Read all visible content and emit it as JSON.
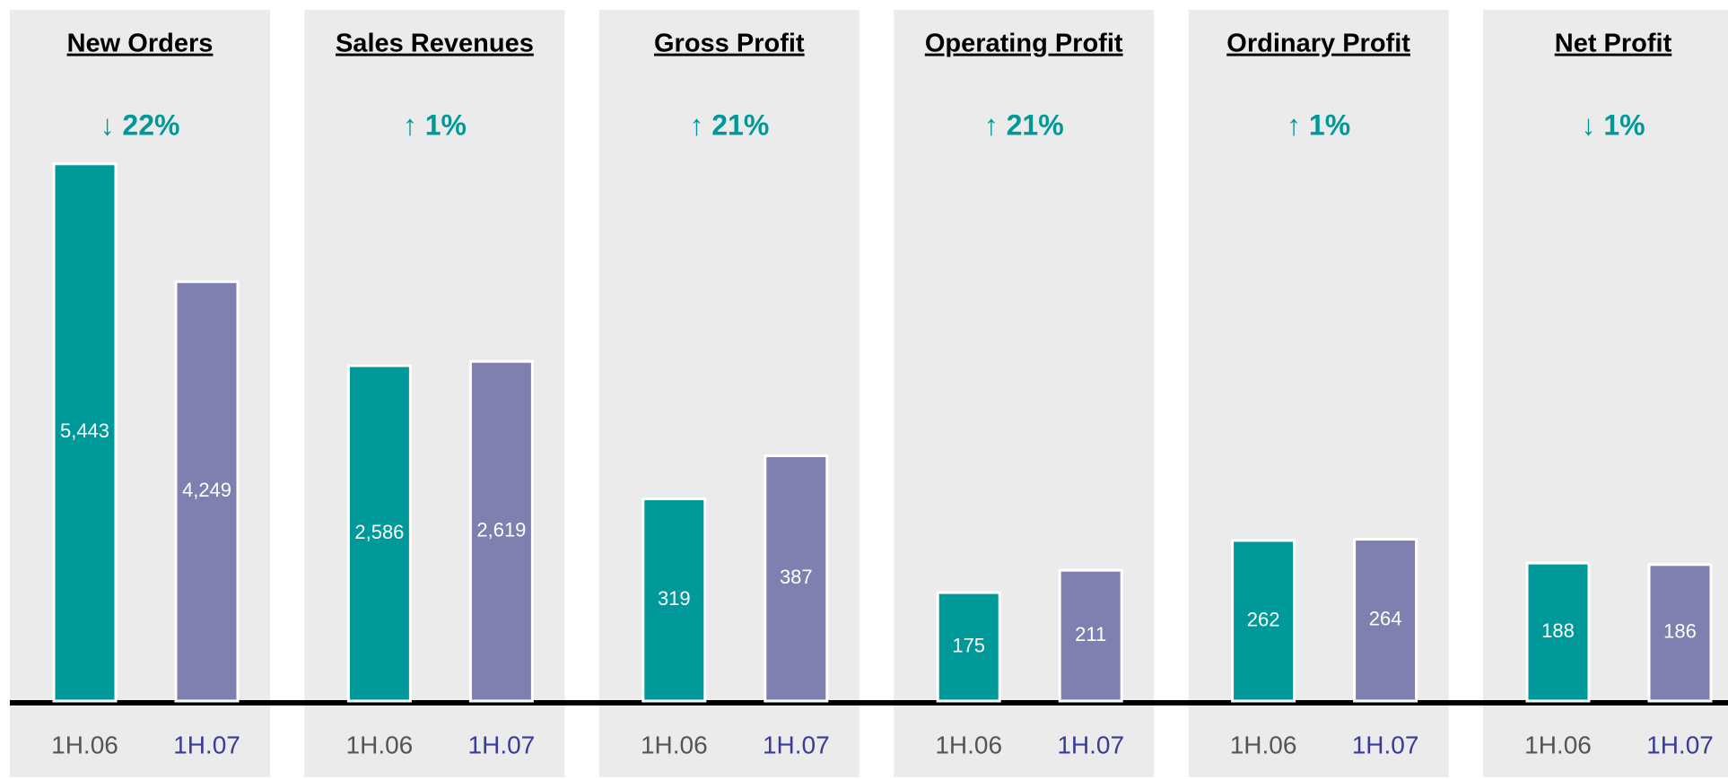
{
  "chart_data": [
    {
      "type": "bar",
      "title": "New Orders",
      "subtitle": "↓ 22%",
      "categories": [
        "1H.06",
        "1H.07"
      ],
      "values": [
        5443,
        4249
      ],
      "value_labels": [
        "5,443",
        "4,249"
      ],
      "colors": [
        "#009999",
        "#7f80b0"
      ],
      "ylim": [
        0,
        5650
      ]
    },
    {
      "type": "bar",
      "title": "Sales Revenues",
      "subtitle": "↑ 1%",
      "categories": [
        "1H.06",
        "1H.07"
      ],
      "values": [
        2586,
        2619
      ],
      "value_labels": [
        "2,586",
        "2,619"
      ],
      "colors": [
        "#009999",
        "#7f80b0"
      ],
      "ylim": [
        0,
        4300
      ]
    },
    {
      "type": "bar",
      "title": "Gross Profit",
      "subtitle": "↑ 21%",
      "categories": [
        "1H.06",
        "1H.07"
      ],
      "values": [
        319,
        387
      ],
      "colors": [
        "#009999",
        "#7f80b0"
      ],
      "ylim": [
        0,
        880
      ]
    },
    {
      "type": "bar",
      "title": "Operating Profit",
      "subtitle": "↑ 21%",
      "categories": [
        "1H.06",
        "1H.07"
      ],
      "values": [
        175,
        211
      ],
      "colors": [
        "#009999",
        "#7f80b0"
      ],
      "ylim": [
        0,
        900
      ]
    },
    {
      "type": "bar",
      "title": "Ordinary Profit",
      "subtitle": "↑ 1%",
      "categories": [
        "1H.06",
        "1H.07"
      ],
      "values": [
        262,
        264
      ],
      "colors": [
        "#009999",
        "#7f80b0"
      ],
      "ylim": [
        0,
        910
      ]
    },
    {
      "type": "bar",
      "title": "Net Profit",
      "subtitle": "↓ 1%",
      "categories": [
        "1H.06",
        "1H.07"
      ],
      "values": [
        188,
        186
      ],
      "colors": [
        "#009999",
        "#7f80b0"
      ],
      "ylim": [
        0,
        760
      ]
    }
  ]
}
